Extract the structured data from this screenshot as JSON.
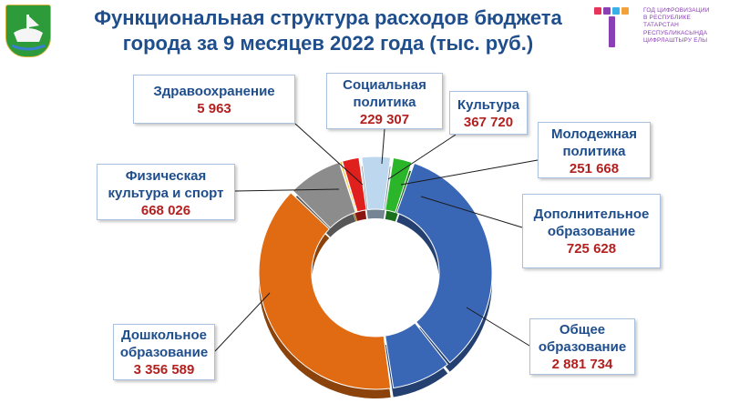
{
  "title_line1": "Функциональная структура расходов бюджета",
  "title_line2": "города за 9 месяцев 2022 года (тыс. руб.)",
  "brand": {
    "lines": [
      "ГОД ЦИФРОВИЗАЦИИ",
      "В РЕСПУБЛИКЕ",
      "ТАТАРСТАН",
      "РЕСПУБЛИКАСЫНДА",
      "ЦИФРЛАШТЫРУ ЕЛЫ"
    ],
    "logo_icon": "city-coat-of-arms-icon",
    "brand_icon": "digitalization-year-logo-icon"
  },
  "chart_data": {
    "type": "pie",
    "donut": true,
    "unit": "тыс. руб.",
    "title": "Функциональная структура расходов бюджета города за 9 месяцев 2022 года (тыс. руб.)",
    "slices": [
      {
        "label_lines": [
          "Социальная",
          "политика"
        ],
        "display": "229 307",
        "value": 229307,
        "color": "#e0201c"
      },
      {
        "label_lines": [
          "Культура"
        ],
        "display": "367 720",
        "value": 367720,
        "color": "#bdd7ee"
      },
      {
        "label_lines": [
          "Молодежная",
          "политика"
        ],
        "display": "251 668",
        "value": 251668,
        "color": "#2bb52b"
      },
      {
        "label_lines": [
          "Общее",
          "образование"
        ],
        "display": "2 881 734",
        "value": 2881734,
        "color": "#3a67b5"
      },
      {
        "label_lines": [
          "Дополнительное",
          "образование"
        ],
        "display": "725 628",
        "value": 725628,
        "color": "#3a67b5"
      },
      {
        "label_lines": [
          "Дошкольное",
          "образование"
        ],
        "display": "3 356 589",
        "value": 3356589,
        "color": "#e06b12"
      },
      {
        "label_lines": [
          "Физическая",
          "культура и спорт"
        ],
        "display": "668 026",
        "value": 668026,
        "color": "#8c8c8c"
      },
      {
        "label_lines": [
          "Здравоохранение"
        ],
        "display": "5 963",
        "value": 5963,
        "color": "#f2c53d"
      }
    ]
  }
}
